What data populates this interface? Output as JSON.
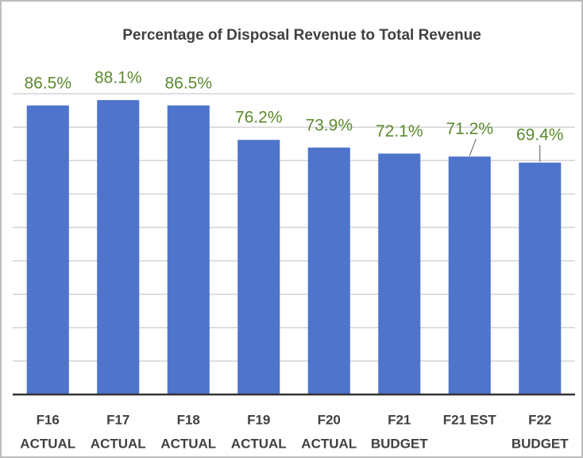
{
  "chart_data": {
    "type": "bar",
    "title": "Percentage of Disposal Revenue to Total Revenue",
    "categories": [
      [
        "F16",
        "ACTUAL"
      ],
      [
        "F17",
        "ACTUAL"
      ],
      [
        "F18",
        "ACTUAL"
      ],
      [
        "F19",
        "ACTUAL"
      ],
      [
        "F20",
        "ACTUAL"
      ],
      [
        "F21",
        "BUDGET"
      ],
      [
        "F21 EST"
      ],
      [
        "F22",
        "BUDGET"
      ]
    ],
    "values": [
      86.5,
      88.1,
      86.5,
      76.2,
      73.9,
      72.1,
      71.2,
      69.4
    ],
    "value_labels": [
      "86.5%",
      "88.1%",
      "86.5%",
      "76.2%",
      "73.9%",
      "72.1%",
      "71.2%",
      "69.4%"
    ],
    "color": "#4f74cc",
    "label_color": "#5b8a2e",
    "ylim": [
      0,
      100
    ],
    "yticks": [
      0,
      10,
      20,
      30,
      40,
      50,
      60,
      70,
      80,
      90
    ],
    "grid": true
  }
}
